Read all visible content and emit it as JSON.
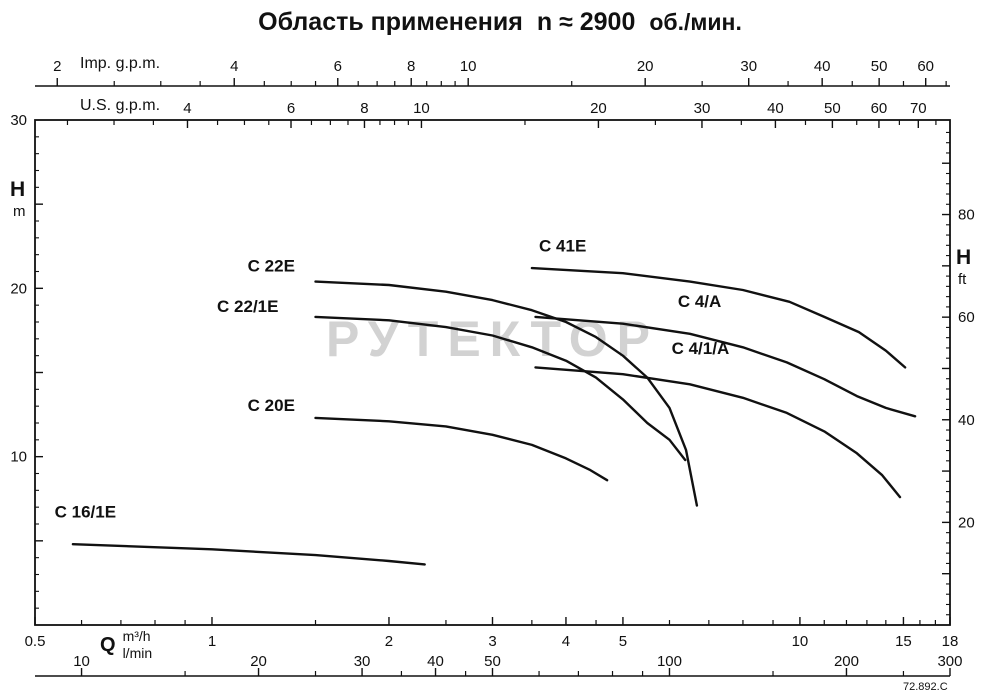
{
  "title": {
    "main": "Область применения",
    "speed": "n ≈ 2900",
    "speed_unit": "об./мин."
  },
  "watermark": "РУТЕКТОР",
  "doc_number": "72.892.C",
  "chart_data": {
    "type": "line",
    "x_scale": "log",
    "x_range_m3h": [
      0.5,
      18
    ],
    "y_range_m": [
      0,
      30
    ],
    "grid": false,
    "axes": {
      "top_imp": {
        "label": "Imp. g.p.m.",
        "labeled_ticks": [
          2,
          4,
          6,
          8,
          10,
          20,
          30,
          40,
          50,
          60
        ],
        "minor_ticks": [
          2.5,
          3,
          3.5,
          4.5,
          5,
          5.5,
          6.5,
          7,
          7.5,
          8.5,
          9,
          9.5,
          15,
          25,
          35,
          45,
          55,
          65
        ]
      },
      "top_us": {
        "label": "U.S. g.p.m.",
        "labeled_ticks": [
          4,
          6,
          8,
          10,
          20,
          30,
          40,
          50,
          60,
          70
        ],
        "minor_ticks": [
          2.5,
          3,
          3.5,
          4.5,
          5,
          5.5,
          6.5,
          7,
          7.5,
          8.5,
          9,
          9.5,
          15,
          25,
          35,
          45,
          55,
          65,
          75
        ]
      },
      "left_m": {
        "label": "H",
        "unit": "m",
        "labeled_ticks": [
          10,
          20,
          30
        ]
      },
      "right_ft": {
        "label": "H",
        "unit": "ft",
        "labeled_ticks": [
          20,
          40,
          60,
          80
        ]
      },
      "bottom_m3h": {
        "label": "Q",
        "unit": "m³/h",
        "labeled_ticks": [
          0.5,
          1,
          2,
          3,
          4,
          5,
          10,
          15,
          18
        ],
        "minor_ticks": [
          0.6,
          0.7,
          0.8,
          0.9,
          1.5,
          2.5,
          3.5,
          4.5,
          6,
          7,
          8,
          9,
          11,
          12,
          13,
          14,
          16,
          17
        ]
      },
      "bottom_lmin": {
        "unit": "l/min",
        "labeled_ticks": [
          10,
          20,
          30,
          40,
          50,
          100,
          200,
          300
        ],
        "minor_ticks": [
          15,
          25,
          35,
          45,
          60,
          70,
          80,
          90,
          150,
          250
        ]
      }
    },
    "series": [
      {
        "name": "C 16/1E",
        "label_at": [
          0.54,
          6.4
        ],
        "points": [
          [
            0.58,
            4.8
          ],
          [
            1.0,
            4.5
          ],
          [
            1.5,
            4.15
          ],
          [
            2.0,
            3.8
          ],
          [
            2.3,
            3.6
          ]
        ]
      },
      {
        "name": "C 20E",
        "label_at": [
          1.15,
          12.7
        ],
        "points": [
          [
            1.5,
            12.3
          ],
          [
            2.0,
            12.1
          ],
          [
            2.5,
            11.8
          ],
          [
            3.0,
            11.3
          ],
          [
            3.5,
            10.7
          ],
          [
            4.0,
            9.9
          ],
          [
            4.4,
            9.2
          ],
          [
            4.7,
            8.6
          ]
        ]
      },
      {
        "name": "C 22E",
        "label_at": [
          1.15,
          21.0
        ],
        "points": [
          [
            1.5,
            20.4
          ],
          [
            2.0,
            20.2
          ],
          [
            2.5,
            19.8
          ],
          [
            3.0,
            19.3
          ],
          [
            3.5,
            18.7
          ],
          [
            4.0,
            18.0
          ],
          [
            4.5,
            17.1
          ],
          [
            5.0,
            16.0
          ],
          [
            5.5,
            14.7
          ],
          [
            6.0,
            12.9
          ],
          [
            6.4,
            10.4
          ],
          [
            6.68,
            7.1
          ]
        ]
      },
      {
        "name": "C 22/1E",
        "label_at": [
          1.02,
          18.6
        ],
        "points": [
          [
            1.5,
            18.3
          ],
          [
            2.0,
            18.1
          ],
          [
            2.5,
            17.7
          ],
          [
            3.0,
            17.2
          ],
          [
            3.5,
            16.5
          ],
          [
            4.0,
            15.7
          ],
          [
            4.5,
            14.7
          ],
          [
            5.0,
            13.4
          ],
          [
            5.5,
            12.0
          ],
          [
            6.0,
            11.0
          ],
          [
            6.38,
            9.8
          ]
        ]
      },
      {
        "name": "C 41E",
        "label_at": [
          3.6,
          22.2
        ],
        "points": [
          [
            3.5,
            21.2
          ],
          [
            5.0,
            20.9
          ],
          [
            6.5,
            20.4
          ],
          [
            8.0,
            19.9
          ],
          [
            9.6,
            19.2
          ],
          [
            11.0,
            18.3
          ],
          [
            12.6,
            17.4
          ],
          [
            14.0,
            16.3
          ],
          [
            15.1,
            15.3
          ]
        ]
      },
      {
        "name": "C 4/A",
        "label_at": [
          6.2,
          18.9
        ],
        "points": [
          [
            3.55,
            18.3
          ],
          [
            5.0,
            17.9
          ],
          [
            6.5,
            17.3
          ],
          [
            8.0,
            16.5
          ],
          [
            9.5,
            15.6
          ],
          [
            11.0,
            14.6
          ],
          [
            12.5,
            13.6
          ],
          [
            14.0,
            12.9
          ],
          [
            15.7,
            12.4
          ]
        ]
      },
      {
        "name": "C 4/1/A",
        "label_at": [
          6.05,
          16.1
        ],
        "points": [
          [
            3.55,
            15.3
          ],
          [
            5.0,
            14.9
          ],
          [
            6.5,
            14.3
          ],
          [
            8.0,
            13.5
          ],
          [
            9.5,
            12.6
          ],
          [
            11.0,
            11.5
          ],
          [
            12.5,
            10.2
          ],
          [
            13.8,
            8.9
          ],
          [
            14.8,
            7.6
          ]
        ]
      }
    ]
  }
}
